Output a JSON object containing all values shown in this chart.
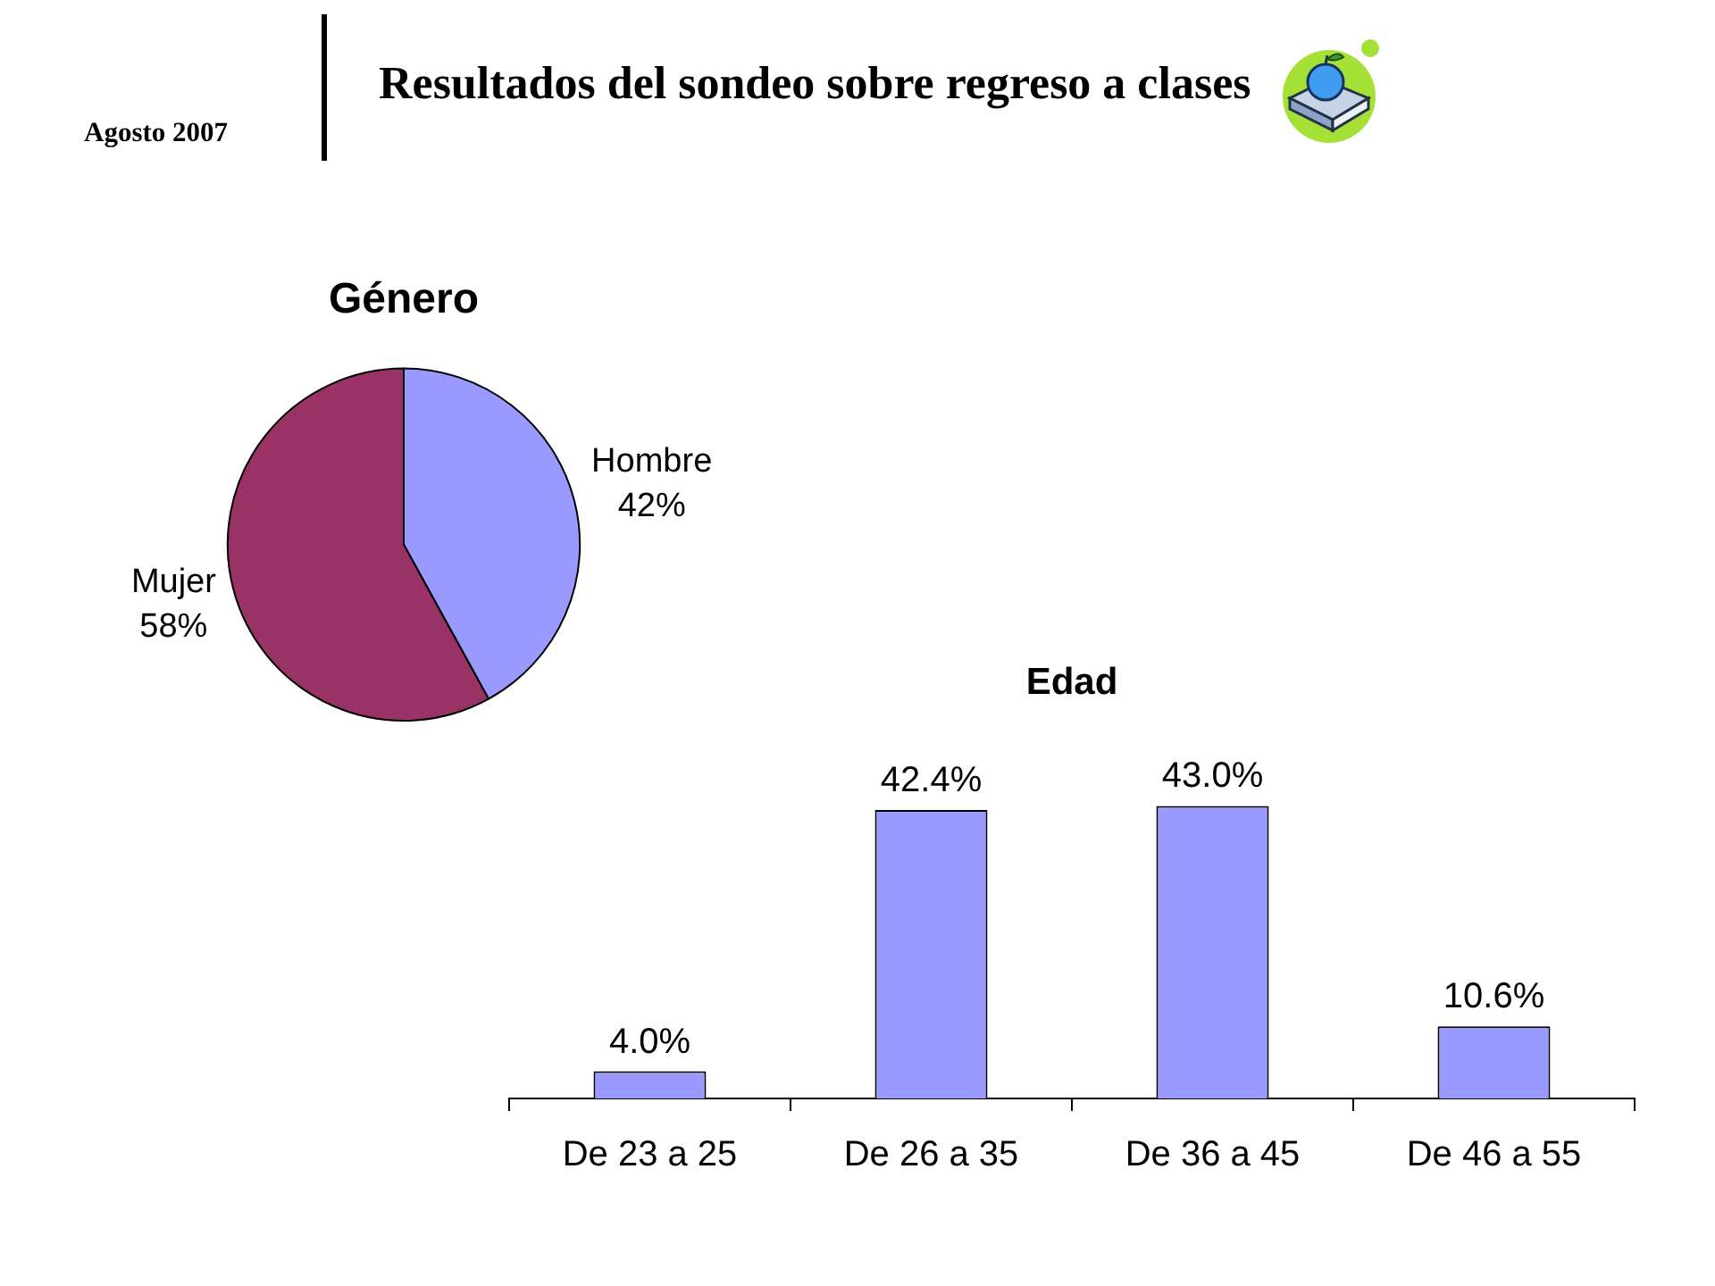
{
  "chart_data": [
    {
      "type": "other",
      "title": "Resultados del sondeo sobre regreso a clases",
      "annotations": [
        "Agosto 2007"
      ]
    },
    {
      "type": "pie",
      "title": "Género",
      "categories": [
        "Hombre",
        "Mujer"
      ],
      "values": [
        42,
        58
      ],
      "colors": [
        "#9999ff",
        "#993366"
      ],
      "value_labels": [
        "42%",
        "58%"
      ]
    },
    {
      "type": "bar",
      "title": "Edad",
      "categories": [
        "De 23 a 25",
        "De 26 a 35",
        "De 36 a 45",
        "De 46 a 55"
      ],
      "values": [
        4.0,
        42.4,
        43.0,
        10.6
      ],
      "color": "#9999ff",
      "value_labels": [
        "4.0%",
        "42.4%",
        "43.0%",
        "10.6%"
      ],
      "tick_labels": "x"
    }
  ]
}
